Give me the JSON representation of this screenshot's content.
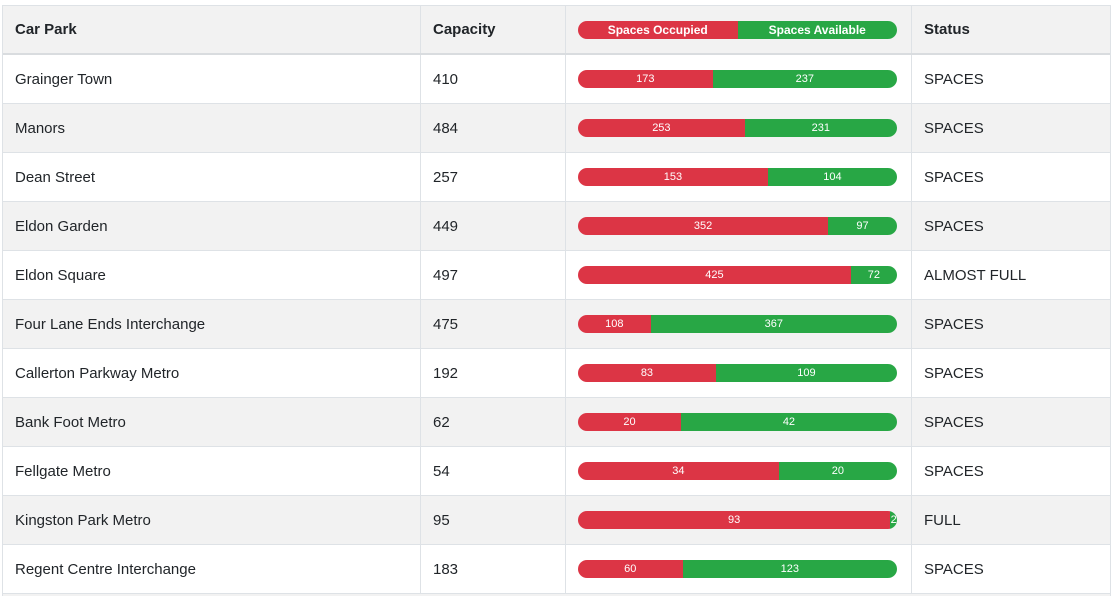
{
  "table": {
    "columns": {
      "car_park": "Car Park",
      "capacity": "Capacity",
      "status": "Status"
    },
    "legend": {
      "occupied_label": "Spaces Occupied",
      "available_label": "Spaces Available",
      "occupied_color": "#dc3545",
      "available_color": "#28a745"
    },
    "rows": [
      {
        "name": "Grainger Town",
        "capacity": 410,
        "occupied": 173,
        "available": 237,
        "status": "SPACES"
      },
      {
        "name": "Manors",
        "capacity": 484,
        "occupied": 253,
        "available": 231,
        "status": "SPACES"
      },
      {
        "name": "Dean Street",
        "capacity": 257,
        "occupied": 153,
        "available": 104,
        "status": "SPACES"
      },
      {
        "name": "Eldon Garden",
        "capacity": 449,
        "occupied": 352,
        "available": 97,
        "status": "SPACES"
      },
      {
        "name": "Eldon Square",
        "capacity": 497,
        "occupied": 425,
        "available": 72,
        "status": "ALMOST FULL"
      },
      {
        "name": "Four Lane Ends Interchange",
        "capacity": 475,
        "occupied": 108,
        "available": 367,
        "status": "SPACES"
      },
      {
        "name": "Callerton Parkway Metro",
        "capacity": 192,
        "occupied": 83,
        "available": 109,
        "status": "SPACES"
      },
      {
        "name": "Bank Foot Metro",
        "capacity": 62,
        "occupied": 20,
        "available": 42,
        "status": "SPACES"
      },
      {
        "name": "Fellgate Metro",
        "capacity": 54,
        "occupied": 34,
        "available": 20,
        "status": "SPACES"
      },
      {
        "name": "Kingston Park Metro",
        "capacity": 95,
        "occupied": 93,
        "available": 2,
        "status": "FULL"
      },
      {
        "name": "Regent Centre Interchange",
        "capacity": 183,
        "occupied": 60,
        "available": 123,
        "status": "SPACES"
      }
    ]
  },
  "chart_data": {
    "type": "bar",
    "stacked": true,
    "orientation": "horizontal",
    "categories": [
      "Grainger Town",
      "Manors",
      "Dean Street",
      "Eldon Garden",
      "Eldon Square",
      "Four Lane Ends Interchange",
      "Callerton Parkway Metro",
      "Bank Foot Metro",
      "Fellgate Metro",
      "Kingston Park Metro",
      "Regent Centre Interchange"
    ],
    "series": [
      {
        "name": "Spaces Occupied",
        "color": "#dc3545",
        "values": [
          173,
          253,
          153,
          352,
          425,
          108,
          83,
          20,
          34,
          93,
          60
        ]
      },
      {
        "name": "Spaces Available",
        "color": "#28a745",
        "values": [
          237,
          231,
          104,
          97,
          72,
          367,
          109,
          42,
          20,
          2,
          123
        ]
      }
    ],
    "capacities": [
      410,
      484,
      257,
      449,
      497,
      475,
      192,
      62,
      54,
      95,
      183
    ],
    "statuses": [
      "SPACES",
      "SPACES",
      "SPACES",
      "SPACES",
      "ALMOST FULL",
      "SPACES",
      "SPACES",
      "SPACES",
      "SPACES",
      "FULL",
      "SPACES"
    ],
    "title": "",
    "xlabel": "",
    "ylabel": "",
    "legend_position": "header-row",
    "note": "Each bar is normalized to full track width; segments are proportions of capacity (occupied + available = capacity)"
  }
}
